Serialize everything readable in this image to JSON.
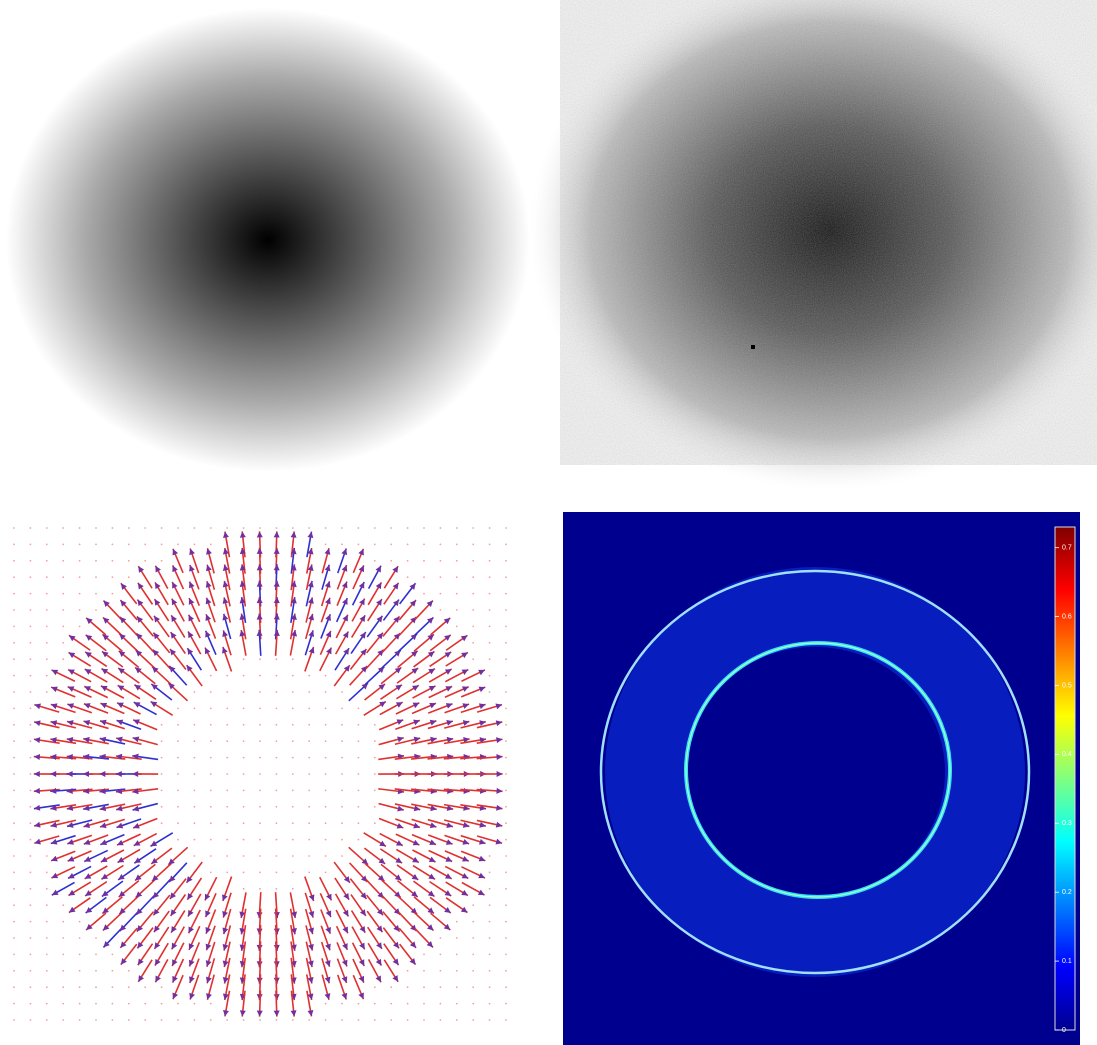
{
  "colorbar": {
    "clim": [
      0,
      0.73
    ],
    "ticks": [
      0,
      0.1,
      0.2,
      0.3,
      0.4,
      0.5,
      0.6,
      0.7
    ]
  }
}
